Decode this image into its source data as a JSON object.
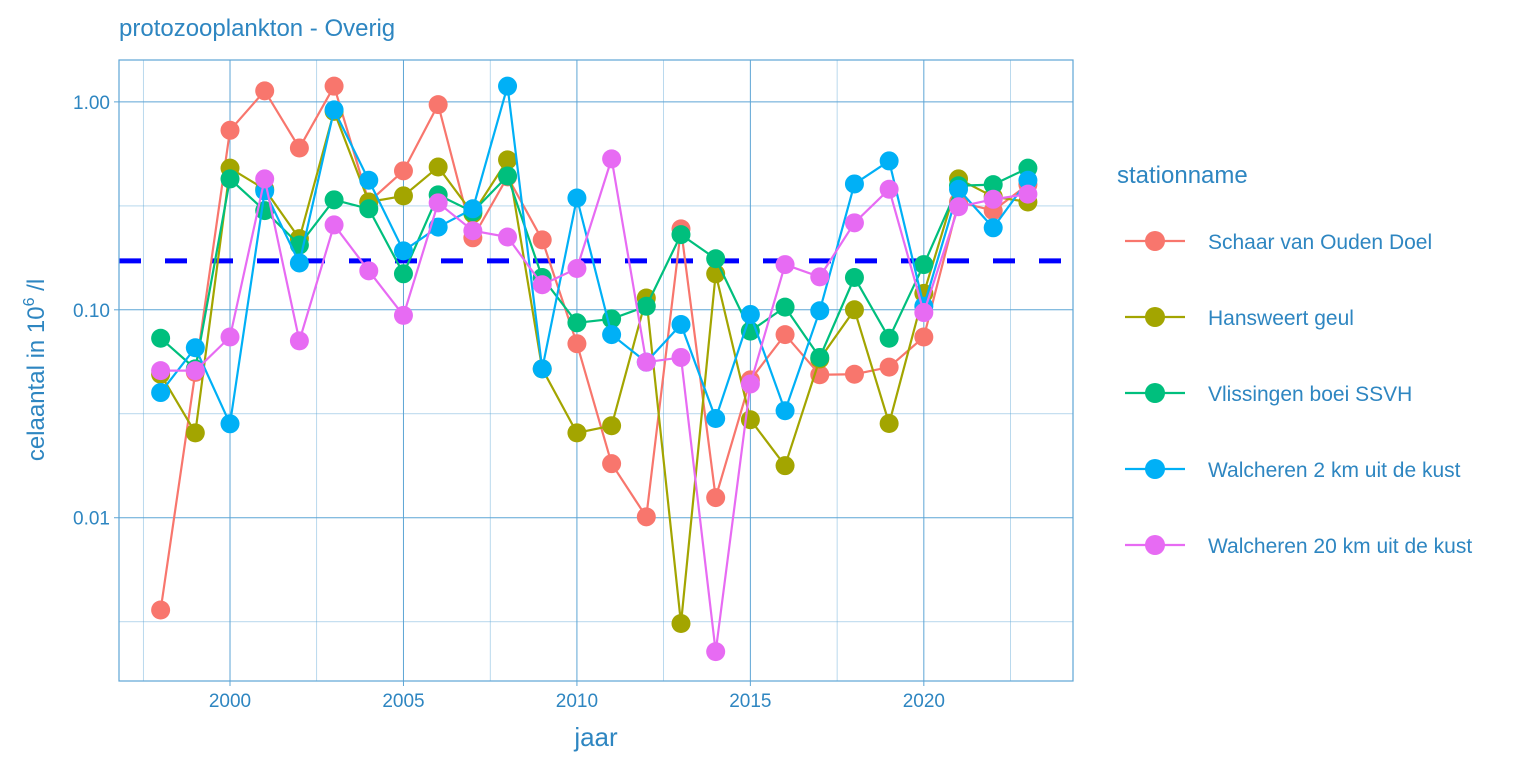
{
  "chart_data": {
    "type": "line",
    "title": "protozooplankton - Overig",
    "xlabel": "jaar",
    "ylabel": "celaantal in  10^6 /l",
    "ylabel_parts": {
      "base": "celaantal in  10",
      "exp": "6",
      "unit": " /l"
    },
    "y_scale": "log10",
    "xlim": [
      1996.8,
      2024.3
    ],
    "ylim": [
      0.00164,
      1.59
    ],
    "x_ticks": [
      2000,
      2005,
      2010,
      2015,
      2020
    ],
    "x_tick_labels": [
      "2000",
      "2005",
      "2010",
      "2015",
      "2020"
    ],
    "y_ticks": [
      0.01,
      0.1,
      1
    ],
    "y_tick_labels": [
      "0.01",
      "0.10",
      "1.00"
    ],
    "grid": true,
    "reference_line": {
      "value": 0.172,
      "style": "dashed",
      "color": "#0000FF"
    },
    "legend": {
      "title": "stationname",
      "placement": "right"
    },
    "x": [
      1998,
      1999,
      2000,
      2001,
      2002,
      2003,
      2004,
      2005,
      2006,
      2007,
      2008,
      2009,
      2010,
      2011,
      2012,
      2013,
      2014,
      2015,
      2016,
      2017,
      2018,
      2019,
      2020,
      2021,
      2022,
      2023
    ],
    "series": [
      {
        "name": "Schaar van Ouden Doel",
        "color": "#F8766D",
        "values": [
          0.0036,
          0.05,
          0.73,
          1.13,
          0.6,
          1.19,
          0.33,
          0.466,
          0.97,
          0.222,
          0.436,
          0.217,
          0.0687,
          0.0182,
          0.0101,
          0.245,
          0.0125,
          0.046,
          0.076,
          0.0487,
          0.049,
          0.053,
          0.074,
          0.33,
          0.3,
          0.4
        ]
      },
      {
        "name": "Hansweert geul",
        "color": "#A3A500",
        "values": [
          0.049,
          0.0256,
          0.48,
          0.38,
          0.22,
          0.9,
          0.33,
          0.353,
          0.486,
          0.29,
          0.526,
          0.052,
          0.0256,
          0.0277,
          0.114,
          0.0031,
          0.149,
          0.0296,
          0.0178,
          0.058,
          0.1,
          0.0284,
          0.12,
          0.426,
          0.35,
          0.33
        ]
      },
      {
        "name": "Vlissingen boei SSVH",
        "color": "#00BF7D",
        "values": [
          0.073,
          0.052,
          0.426,
          0.3,
          0.205,
          0.338,
          0.306,
          0.149,
          0.357,
          0.296,
          0.44,
          0.143,
          0.0866,
          0.0904,
          0.104,
          0.23,
          0.176,
          0.079,
          0.103,
          0.059,
          0.143,
          0.073,
          0.165,
          0.395,
          0.4,
          0.48
        ]
      },
      {
        "name": "Walcheren 2 km uit de kust",
        "color": "#00B0F6",
        "values": [
          0.04,
          0.0657,
          0.0283,
          0.373,
          0.168,
          0.915,
          0.42,
          0.192,
          0.25,
          0.306,
          1.19,
          0.052,
          0.345,
          0.076,
          0.056,
          0.085,
          0.03,
          0.095,
          0.0327,
          0.099,
          0.403,
          0.52,
          0.104,
          0.38,
          0.248,
          0.42
        ]
      },
      {
        "name": "Walcheren 20 km uit de kust",
        "color": "#E76BF3",
        "values": [
          0.051,
          0.051,
          0.074,
          0.426,
          0.0709,
          0.256,
          0.154,
          0.094,
          0.327,
          0.24,
          0.224,
          0.132,
          0.158,
          0.532,
          0.056,
          0.059,
          0.00227,
          0.044,
          0.165,
          0.144,
          0.262,
          0.38,
          0.097,
          0.313,
          0.34,
          0.36
        ]
      }
    ]
  },
  "colors": {
    "text": "#2E86C1",
    "grid": "#5DA5D5",
    "reference": "#0000FF"
  }
}
